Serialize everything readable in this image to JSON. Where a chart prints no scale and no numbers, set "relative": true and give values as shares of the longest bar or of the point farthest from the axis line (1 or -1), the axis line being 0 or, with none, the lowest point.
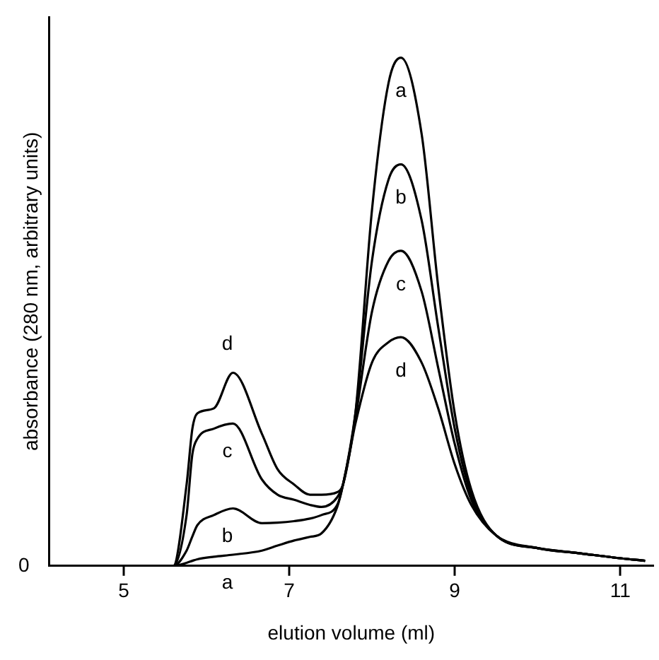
{
  "chart_data": {
    "type": "line",
    "relative": true,
    "xlabel": "elution volume (ml)",
    "ylabel": "absorbance (280 nm, arbitrary units)",
    "xlim": [
      4.1,
      11.4
    ],
    "xticks": [
      5,
      7,
      9,
      11
    ],
    "grid": false,
    "legend": false,
    "marker": "none",
    "line_style": "solid",
    "x": [
      4.1,
      5.6,
      5.76,
      5.83,
      5.89,
      6.09,
      6.32,
      6.67,
      6.86,
      7.06,
      7.25,
      7.39,
      7.58,
      7.65,
      7.8,
      8.0,
      8.2,
      8.35,
      8.6,
      8.8,
      9.0,
      9.2,
      9.5,
      10.0,
      10.5,
      11.0,
      11.3
    ],
    "series": [
      {
        "name": "a",
        "color": "#000000",
        "values": [
          0,
          0,
          0.006,
          0.01,
          0.013,
          0.018,
          0.022,
          0.03,
          0.04,
          0.05,
          0.057,
          0.064,
          0.116,
          0.16,
          0.3,
          0.7,
          0.95,
          1.0,
          0.85,
          0.55,
          0.3,
          0.15,
          0.06,
          0.035,
          0.025,
          0.015,
          0.01
        ]
      },
      {
        "name": "b",
        "color": "#000000",
        "values": [
          0,
          0,
          0.03,
          0.058,
          0.08,
          0.1,
          0.113,
          0.084,
          0.085,
          0.088,
          0.093,
          0.1,
          0.12,
          0.16,
          0.3,
          0.6,
          0.76,
          0.79,
          0.68,
          0.47,
          0.27,
          0.14,
          0.06,
          0.035,
          0.025,
          0.015,
          0.01
        ]
      },
      {
        "name": "c",
        "color": "#000000",
        "values": [
          0,
          0,
          0.1,
          0.22,
          0.25,
          0.27,
          0.28,
          0.17,
          0.14,
          0.13,
          0.12,
          0.116,
          0.135,
          0.16,
          0.29,
          0.5,
          0.6,
          0.62,
          0.54,
          0.39,
          0.24,
          0.13,
          0.06,
          0.035,
          0.025,
          0.015,
          0.01
        ]
      },
      {
        "name": "d",
        "color": "#000000",
        "values": [
          0,
          0,
          0.16,
          0.27,
          0.3,
          0.31,
          0.38,
          0.26,
          0.19,
          0.16,
          0.14,
          0.14,
          0.145,
          0.16,
          0.28,
          0.4,
          0.44,
          0.45,
          0.4,
          0.31,
          0.2,
          0.12,
          0.06,
          0.035,
          0.025,
          0.015,
          0.01
        ]
      }
    ],
    "annotations": [
      "0"
    ]
  }
}
